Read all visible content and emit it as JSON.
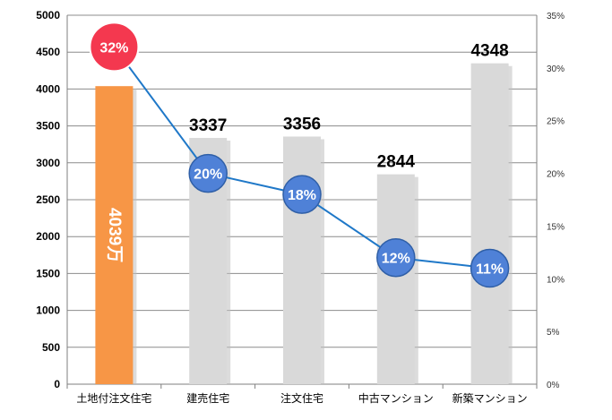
{
  "chart_data": {
    "type": "bar",
    "categories": [
      "土地付注文住宅",
      "建売住宅",
      "注文住宅",
      "中古マンション",
      "新築マンション"
    ],
    "bar_series": {
      "values": [
        4039,
        3337,
        3356,
        2844,
        4348
      ],
      "value_labels": [
        "4039万",
        "3337",
        "3356",
        "2844",
        "4348"
      ],
      "colors": [
        "#f79646",
        "#d9d9d9",
        "#d9d9d9",
        "#d9d9d9",
        "#d9d9d9"
      ]
    },
    "line_series": {
      "axis": "right",
      "values": [
        32,
        20,
        18,
        12,
        11
      ],
      "labels": [
        "32%",
        "20%",
        "18%",
        "12%",
        "11%"
      ],
      "line_color": "#1f78c8",
      "marker_color": "#4f81d7",
      "highlight_marker_color": "#f4384f"
    },
    "y_left": {
      "min": 0,
      "max": 5000,
      "step": 500,
      "ticks": [
        "0",
        "500",
        "1000",
        "1500",
        "2000",
        "2500",
        "3000",
        "3500",
        "4000",
        "4500",
        "5000"
      ]
    },
    "y_right": {
      "min": 0,
      "max": 35,
      "step": 5,
      "ticks": [
        "0%",
        "5%",
        "10%",
        "15%",
        "20%",
        "25%",
        "30%",
        "35%"
      ]
    },
    "grid": true,
    "legend": "none",
    "xlabel": "",
    "ylabel": "",
    "title": ""
  }
}
